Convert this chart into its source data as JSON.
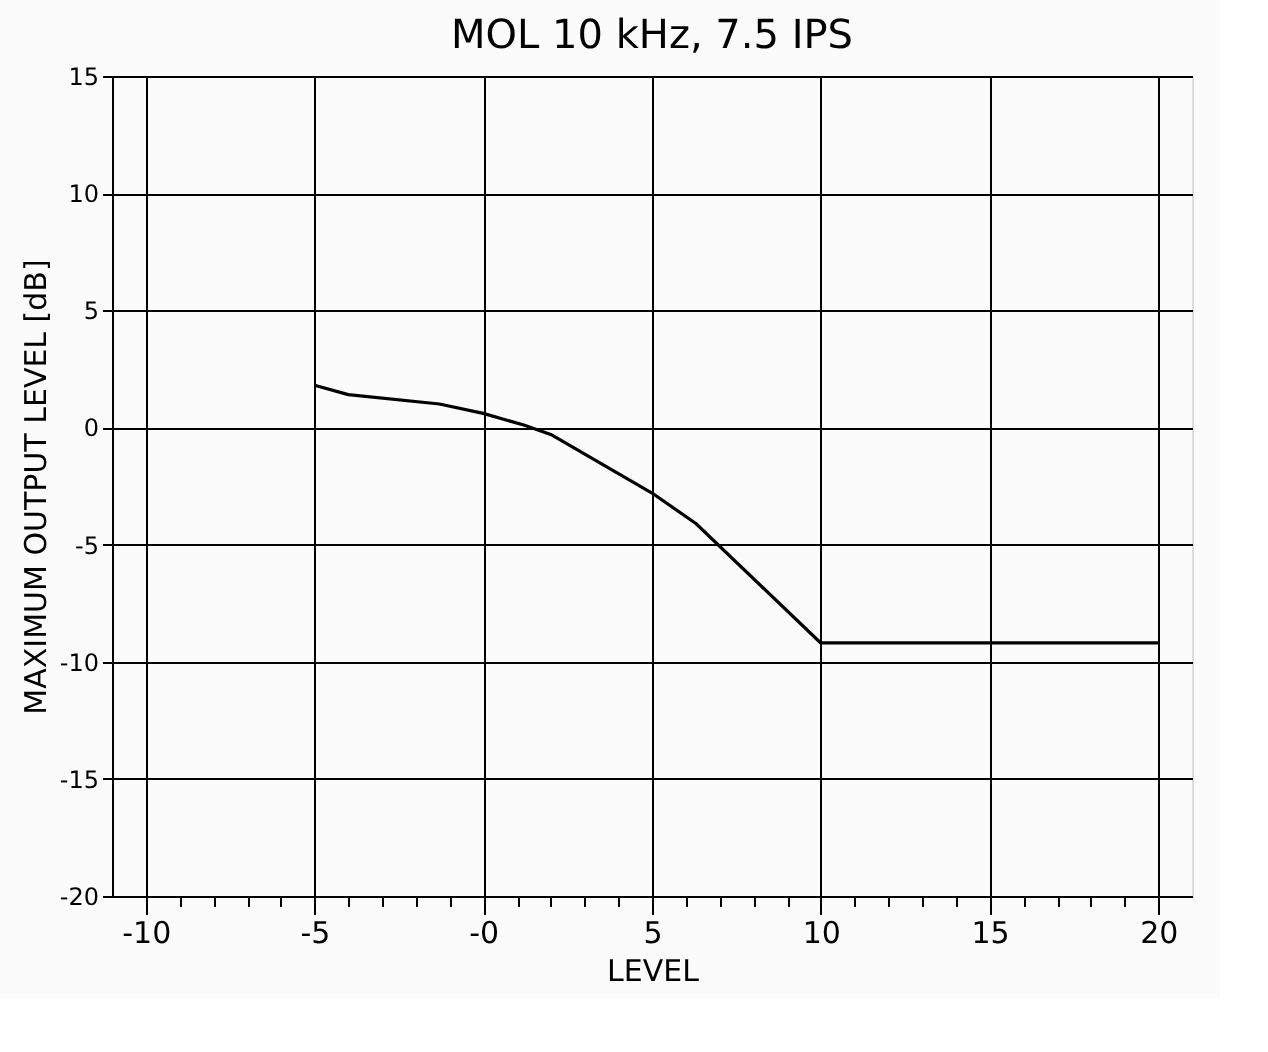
{
  "chart_data": {
    "type": "line",
    "title": "MOL 10 kHz, 7.5 IPS",
    "xlabel": "LEVEL",
    "ylabel": "MAXIMUM OUTPUT LEVEL [dB]",
    "x": [
      -5,
      -4,
      -1.3,
      0,
      1.2,
      2,
      5,
      6.3,
      10,
      20
    ],
    "series": [
      {
        "color": "#000000",
        "values": [
          1.8,
          1.4,
          1.0,
          0.6,
          0.1,
          -0.3,
          -2.8,
          -4.1,
          -9.2,
          -9.2
        ]
      }
    ],
    "xlim": [
      -11,
      21
    ],
    "xticks": [
      -10,
      {
        "value": -9,
        "label": null
      },
      {
        "value": -8,
        "label": null
      },
      {
        "value": -7,
        "label": null
      },
      {
        "value": -6,
        "label": null
      },
      -5,
      {
        "value": -4,
        "label": null
      },
      {
        "value": -3,
        "label": null
      },
      {
        "value": -2,
        "label": null
      },
      {
        "value": -1,
        "label": null
      },
      {
        "value": 0,
        "label": "-0"
      },
      {
        "value": 1,
        "label": null
      },
      {
        "value": 2,
        "label": null
      },
      {
        "value": 3,
        "label": null
      },
      {
        "value": 4,
        "label": null
      },
      5,
      {
        "value": 6,
        "label": null
      },
      {
        "value": 7,
        "label": null
      },
      {
        "value": 8,
        "label": null
      },
      {
        "value": 9,
        "label": null
      },
      10,
      {
        "value": 11,
        "label": null
      },
      {
        "value": 12,
        "label": null
      },
      {
        "value": 13,
        "label": null
      },
      {
        "value": 14,
        "label": null
      },
      15,
      {
        "value": 16,
        "label": null
      },
      {
        "value": 17,
        "label": null
      },
      {
        "value": 18,
        "label": null
      },
      {
        "value": 19,
        "label": null
      },
      20
    ],
    "ylim": [
      -20,
      15
    ],
    "yticks": [
      -20,
      -15,
      -10,
      -5,
      0,
      5,
      10,
      15
    ],
    "grid": true,
    "marker": "none",
    "line_style": "solid"
  }
}
